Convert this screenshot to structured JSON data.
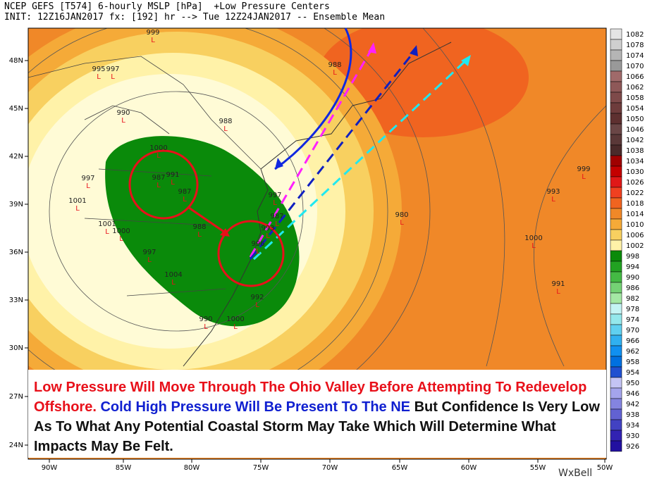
{
  "header": {
    "line1": "NCEP GEFS [T574] 6-hourly MSLP [hPa]  +Low Pressure Centers",
    "line2": "INIT: 12Z16JAN2017 fx: [192] hr --> Tue 12Z24JAN2017 -- Ensemble Mean"
  },
  "lat_labels": [
    "48N",
    "45N",
    "42N",
    "39N",
    "36N",
    "33N",
    "30N",
    "27N",
    "24N"
  ],
  "lon_labels": [
    "90W",
    "85W",
    "80W",
    "75W",
    "70W",
    "65W",
    "60W",
    "55W",
    "50W"
  ],
  "colorbar": [
    {
      "label": "1082",
      "color": "#e4e4e4"
    },
    {
      "label": "1078",
      "color": "#cfcfcf"
    },
    {
      "label": "1074",
      "color": "#b5b5b5"
    },
    {
      "label": "1070",
      "color": "#999999"
    },
    {
      "label": "1066",
      "color": "#a06a6a"
    },
    {
      "label": "1062",
      "color": "#8e5858"
    },
    {
      "label": "1058",
      "color": "#7e4a4a"
    },
    {
      "label": "1054",
      "color": "#6e3c3c"
    },
    {
      "label": "1050",
      "color": "#5e3030"
    },
    {
      "label": "1046",
      "color": "#6a4646"
    },
    {
      "label": "1042",
      "color": "#5a3838"
    },
    {
      "label": "1038",
      "color": "#4a2a2a"
    },
    {
      "label": "1034",
      "color": "#a00000"
    },
    {
      "label": "1030",
      "color": "#c40000"
    },
    {
      "label": "1026",
      "color": "#e01818"
    },
    {
      "label": "1022",
      "color": "#f04020"
    },
    {
      "label": "1018",
      "color": "#f06420"
    },
    {
      "label": "1014",
      "color": "#f08828"
    },
    {
      "label": "1010",
      "color": "#f5aa38"
    },
    {
      "label": "1006",
      "color": "#f8d060"
    },
    {
      "label": "1002",
      "color": "#fff2a8"
    },
    {
      "label": "998",
      "color": "#0a8a0a"
    },
    {
      "label": "994",
      "color": "#22a222"
    },
    {
      "label": "990",
      "color": "#44ba44"
    },
    {
      "label": "986",
      "color": "#74d274"
    },
    {
      "label": "982",
      "color": "#a4e8a4"
    },
    {
      "label": "978",
      "color": "#c4f4f4"
    },
    {
      "label": "974",
      "color": "#94e8ec"
    },
    {
      "label": "970",
      "color": "#60d0f0"
    },
    {
      "label": "966",
      "color": "#30b0f0"
    },
    {
      "label": "962",
      "color": "#1090f0"
    },
    {
      "label": "958",
      "color": "#0070e0"
    },
    {
      "label": "954",
      "color": "#2050d0"
    },
    {
      "label": "950",
      "color": "#c4c4f4"
    },
    {
      "label": "946",
      "color": "#a4a4ec"
    },
    {
      "label": "942",
      "color": "#8484e0"
    },
    {
      "label": "938",
      "color": "#6262d2"
    },
    {
      "label": "934",
      "color": "#4242c2"
    },
    {
      "label": "930",
      "color": "#3222b2"
    },
    {
      "label": "926",
      "color": "#2210a0"
    }
  ],
  "low_marker": "L",
  "lows": [
    "999",
    "995",
    "997",
    "990",
    "988",
    "988",
    "1000",
    "997",
    "991",
    "987",
    "987",
    "1001",
    "1001",
    "1000",
    "988",
    "997",
    "987",
    "993",
    "996",
    "997",
    "1004",
    "980",
    "1000",
    "993",
    "999",
    "991",
    "992",
    "990",
    "1000"
  ],
  "caption": [
    {
      "text": "Low Pressure Will Move Through The Ohio Valley Before Attempting To Redevelop Offshore.",
      "color": "#e8101a"
    },
    {
      "text": "Cold High Pressure Will Be Present To The NE",
      "color": "#1020d0"
    },
    {
      "text": "But Confidence Is Very Low As To What Any Potential Coastal Storm May Take Which Will Determine What Impacts May Be Felt.",
      "color": "#111111"
    }
  ],
  "logo": "WxBell"
}
